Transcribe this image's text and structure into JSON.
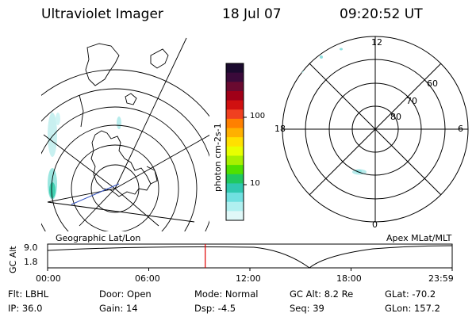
{
  "header": {
    "title": "Ultraviolet Imager",
    "date": "18 Jul 07",
    "time": "09:20:52 UT"
  },
  "left_panel": {
    "caption": "Geographic Lat/Lon"
  },
  "right_panel": {
    "caption": "Apex MLat/MLT",
    "mlt_labels": {
      "top": "12",
      "bottom": "0",
      "left": "18",
      "right": "6"
    },
    "lat_labels": [
      "60",
      "70",
      "80"
    ]
  },
  "colorbar": {
    "unit_label": "photon cm-2s-1",
    "ticks": [
      "100",
      "10"
    ],
    "colors": [
      "#1a0a2e",
      "#3a0a3a",
      "#6a0a30",
      "#a00018",
      "#d01010",
      "#f04020",
      "#ff8000",
      "#ffb000",
      "#ffe000",
      "#e8ff00",
      "#a8f000",
      "#50e000",
      "#20c860",
      "#30c8b0",
      "#70e0e0",
      "#b0f0f0",
      "#e0f8f8"
    ]
  },
  "altitude_plot": {
    "ylabel": "GC Alt",
    "y_ticks": [
      "9.0",
      "1.8"
    ],
    "x_ticks": [
      "00:00",
      "06:00",
      "12:00",
      "18:00",
      "23:59"
    ],
    "current_time_hours": 9.35,
    "marker_color": "#e00000"
  },
  "info": {
    "flt": "Flt: LBHL",
    "ip": "IP: 36.0",
    "door": "Door: Open",
    "gain": "Gain: 14",
    "mode": "Mode: Normal",
    "dsp": "Dsp:    -4.5",
    "gc_alt": "GC Alt: 8.2 Re",
    "seq": "Seq: 39",
    "glat": "GLat: -70.2",
    "glon": "GLon: 157.2"
  }
}
